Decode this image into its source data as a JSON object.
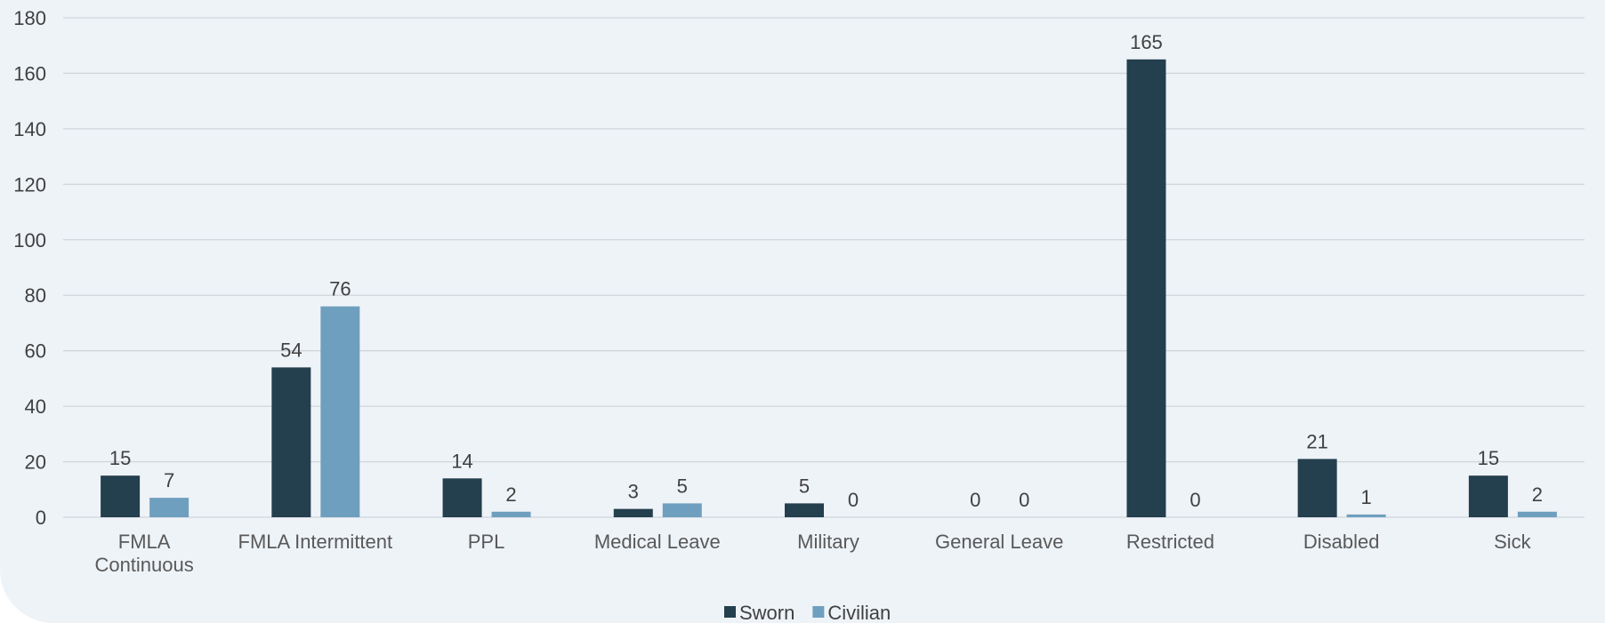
{
  "chart_data": {
    "type": "bar",
    "categories": [
      "FMLA Continuous",
      "FMLA Intermittent",
      "PPL",
      "Medical Leave",
      "Military",
      "General Leave",
      "Restricted",
      "Disabled",
      "Sick"
    ],
    "series": [
      {
        "name": "Sworn",
        "color": "#243f4e",
        "values": [
          15,
          54,
          14,
          3,
          5,
          0,
          165,
          21,
          15
        ]
      },
      {
        "name": "Civilian",
        "color": "#6f9fbf",
        "values": [
          7,
          76,
          2,
          5,
          0,
          0,
          0,
          1,
          2
        ]
      }
    ],
    "ylim": [
      0,
      180
    ],
    "yticks": [
      0,
      20,
      40,
      60,
      80,
      100,
      120,
      140,
      160,
      180
    ],
    "grid": true,
    "legend": "bottom"
  }
}
